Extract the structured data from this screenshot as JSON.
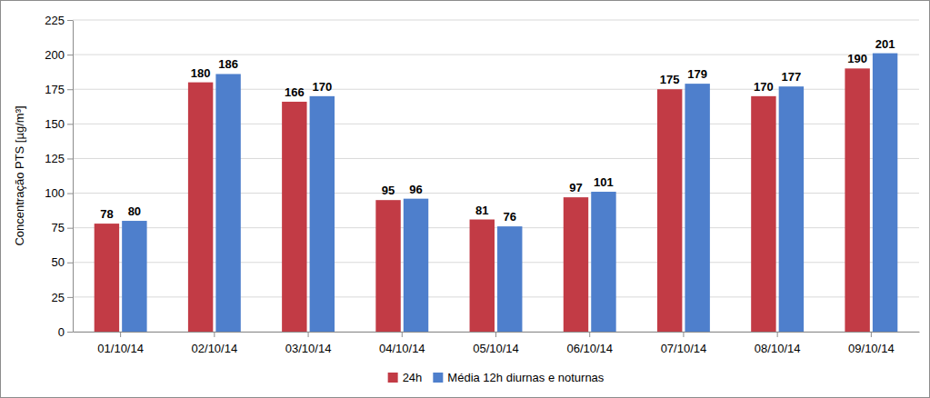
{
  "chart_data": {
    "type": "bar",
    "y_label": "Concentração PTS [µg/m³]",
    "categories": [
      "01/10/14",
      "02/10/14",
      "03/10/14",
      "04/10/14",
      "05/10/14",
      "06/10/14",
      "07/10/14",
      "08/10/14",
      "09/10/14"
    ],
    "series": [
      {
        "name": "24h",
        "color": "#c23b45",
        "values": [
          78,
          180,
          166,
          95,
          81,
          97,
          175,
          170,
          190
        ]
      },
      {
        "name": "Média 12h diurnas e noturnas",
        "color": "#4e7fcc",
        "values": [
          80,
          186,
          170,
          96,
          76,
          101,
          179,
          177,
          201
        ]
      }
    ],
    "ylim": [
      0,
      225
    ],
    "yticks": [
      0,
      25,
      50,
      75,
      100,
      125,
      150,
      175,
      200,
      225
    ],
    "grid": true,
    "data_labels": true,
    "legend": "bottom"
  }
}
